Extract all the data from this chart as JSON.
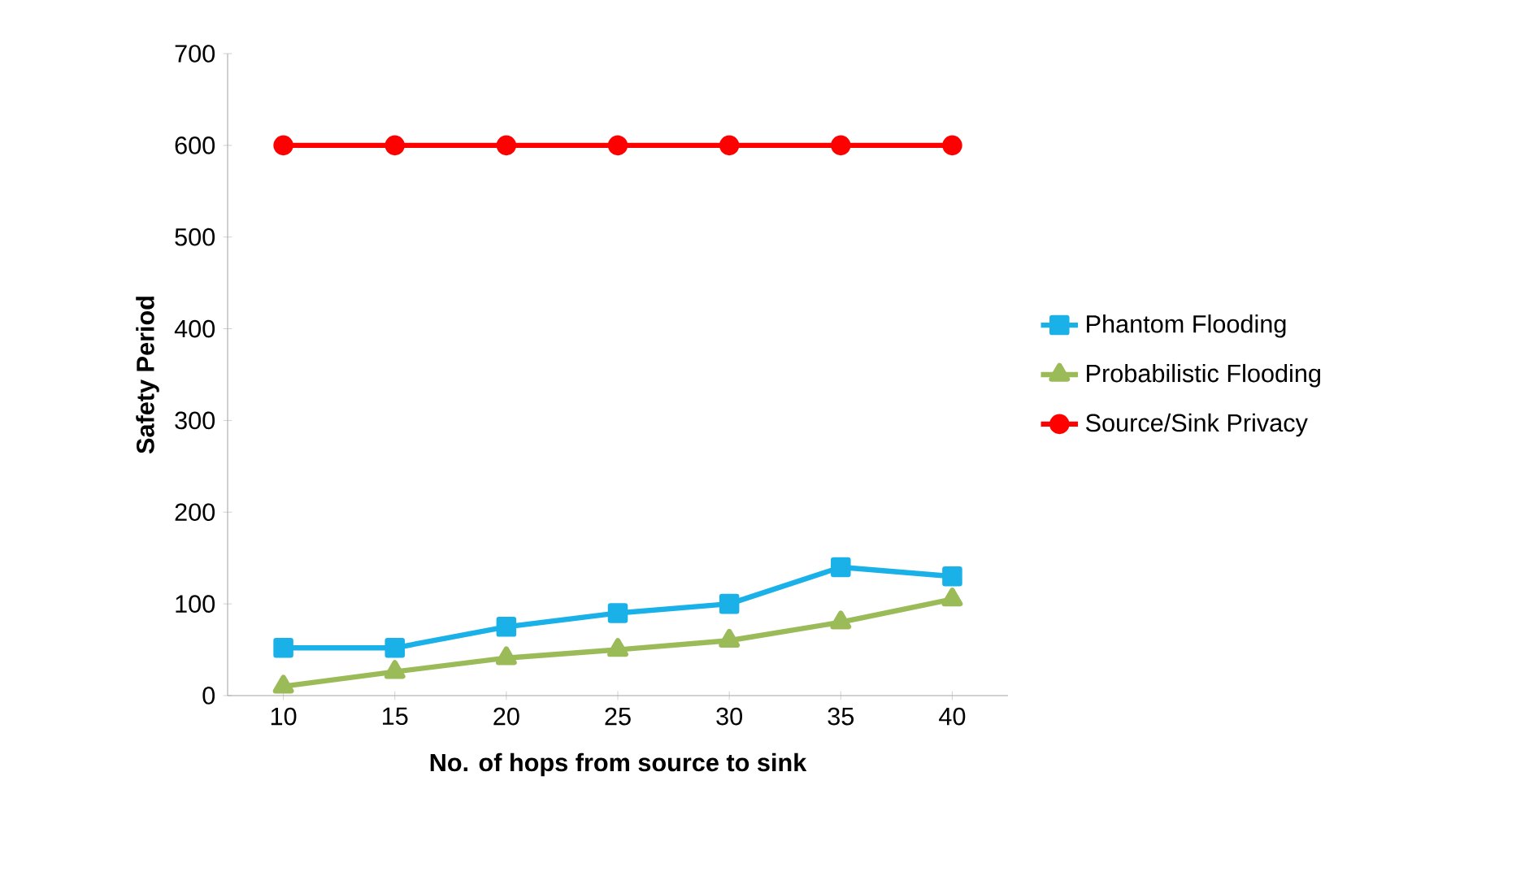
{
  "chart_data": {
    "type": "line",
    "xlabel": "No. of hops from source to sink",
    "ylabel": "Safety Period",
    "categories": [
      "10",
      "15",
      "20",
      "25",
      "30",
      "35",
      "40"
    ],
    "ylim": [
      0,
      700
    ],
    "yticks": [
      0,
      100,
      200,
      300,
      400,
      500,
      600,
      700
    ],
    "grid": false,
    "legend": "right",
    "series": [
      {
        "name": "Phantom Flooding",
        "color": "#1ab0e8",
        "marker": "square",
        "values": [
          52,
          52,
          75,
          90,
          100,
          140,
          130
        ]
      },
      {
        "name": "Probabilistic Flooding",
        "color": "#9bbb59",
        "marker": "triangle",
        "values": [
          10,
          26,
          41,
          50,
          60,
          80,
          105
        ]
      },
      {
        "name": "Source/Sink Privacy",
        "color": "#ff0000",
        "marker": "circle",
        "values": [
          600,
          600,
          600,
          600,
          600,
          600,
          600
        ]
      }
    ]
  }
}
